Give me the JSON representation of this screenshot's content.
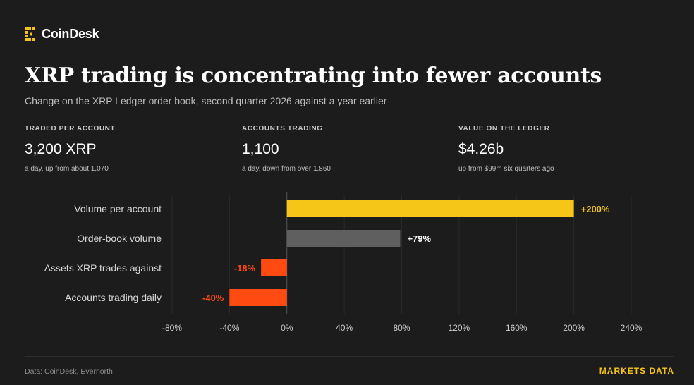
{
  "brand": {
    "name": "CoinDesk",
    "icon": "coindesk-logo-icon",
    "color": "#f5c518"
  },
  "header": {
    "title": "XRP trading is concentrating into fewer accounts",
    "subtitle": "Change on the XRP Ledger order book, second quarter 2026 against a year earlier"
  },
  "stats": [
    {
      "label": "TRADED PER ACCOUNT",
      "value": "3,200 XRP",
      "note": "a day, up from about 1,070"
    },
    {
      "label": "ACCOUNTS TRADING",
      "value": "1,100",
      "note": "a day, down from over 1,860"
    },
    {
      "label": "VALUE ON THE LEDGER",
      "value": "$4.26b",
      "note": "up from $99m six quarters ago"
    }
  ],
  "chart_data": {
    "type": "bar",
    "orientation": "horizontal",
    "categories": [
      "Volume per account",
      "Order-book volume",
      "Assets XRP trades against",
      "Accounts trading daily"
    ],
    "values": [
      200,
      79,
      -18,
      -40
    ],
    "value_labels": [
      "+200%",
      "+79%",
      "-18%",
      "-40%"
    ],
    "bar_colors": [
      "#f5c518",
      "#5f5f5f",
      "#ff4a12",
      "#ff4a12"
    ],
    "label_colors": [
      "#f5c518",
      "#ffffff",
      "#ff4a12",
      "#ff4a12"
    ],
    "xlim": [
      -80,
      240
    ],
    "xticks": [
      -80,
      -40,
      0,
      40,
      80,
      120,
      160,
      200,
      240
    ],
    "xtick_labels": [
      "-80%",
      "-40%",
      "0%",
      "40%",
      "80%",
      "120%",
      "160%",
      "200%",
      "240%"
    ],
    "grid": true,
    "title": "",
    "xlabel": "",
    "ylabel": ""
  },
  "footer": {
    "source": "Data: CoinDesk, Evernorth",
    "tag": "MARKETS DATA"
  }
}
